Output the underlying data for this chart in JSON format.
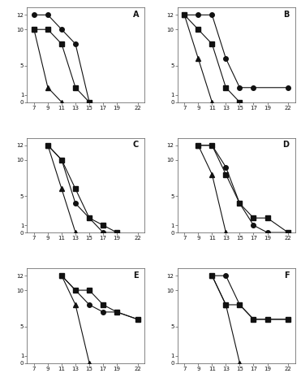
{
  "subplots": {
    "A": {
      "circle": {
        "x": [
          7,
          9,
          11,
          13,
          15
        ],
        "y": [
          12,
          12,
          10,
          8,
          0
        ]
      },
      "square": {
        "x": [
          7,
          9,
          11,
          13,
          15
        ],
        "y": [
          10,
          10,
          8,
          2,
          0
        ]
      },
      "triangle": {
        "x": [
          7,
          9,
          11
        ],
        "y": [
          10,
          2,
          0
        ]
      }
    },
    "B": {
      "circle": {
        "x": [
          7,
          9,
          11,
          13,
          15,
          17,
          22
        ],
        "y": [
          12,
          12,
          12,
          6,
          2,
          2,
          2
        ]
      },
      "square": {
        "x": [
          7,
          9,
          11,
          13,
          15
        ],
        "y": [
          12,
          10,
          8,
          2,
          0
        ]
      },
      "triangle": {
        "x": [
          7,
          9,
          11
        ],
        "y": [
          12,
          6,
          0
        ]
      }
    },
    "C": {
      "circle": {
        "x": [
          9,
          11,
          13,
          15,
          17,
          19
        ],
        "y": [
          12,
          10,
          4,
          2,
          0,
          0
        ]
      },
      "square": {
        "x": [
          9,
          11,
          13,
          15,
          17,
          19
        ],
        "y": [
          12,
          10,
          6,
          2,
          1,
          0
        ]
      },
      "triangle": {
        "x": [
          9,
          11,
          13
        ],
        "y": [
          12,
          6,
          0
        ]
      }
    },
    "D": {
      "circle": {
        "x": [
          9,
          11,
          13,
          15,
          17,
          19,
          22
        ],
        "y": [
          12,
          12,
          9,
          4,
          1,
          0,
          0
        ]
      },
      "square": {
        "x": [
          9,
          11,
          13,
          15,
          17,
          19,
          22
        ],
        "y": [
          12,
          12,
          8,
          4,
          2,
          2,
          0
        ]
      },
      "triangle": {
        "x": [
          9,
          11,
          13
        ],
        "y": [
          12,
          8,
          0
        ]
      }
    },
    "E": {
      "circle": {
        "x": [
          11,
          13,
          15,
          17,
          19,
          22
        ],
        "y": [
          12,
          10,
          8,
          7,
          7,
          6
        ]
      },
      "square": {
        "x": [
          11,
          13,
          15,
          17,
          19,
          22
        ],
        "y": [
          12,
          10,
          10,
          8,
          7,
          6
        ]
      },
      "triangle": {
        "x": [
          11,
          13,
          15
        ],
        "y": [
          12,
          8,
          0
        ]
      }
    },
    "F": {
      "circle": {
        "x": [
          11,
          13,
          15,
          17,
          19,
          22
        ],
        "y": [
          12,
          12,
          8,
          6,
          6,
          6
        ]
      },
      "square": {
        "x": [
          11,
          13,
          15,
          17,
          19,
          22
        ],
        "y": [
          12,
          8,
          8,
          6,
          6,
          6
        ]
      },
      "triangle": {
        "x": [
          11,
          13,
          15
        ],
        "y": [
          12,
          8,
          0
        ]
      }
    }
  },
  "xlim": [
    6,
    23
  ],
  "ylim": [
    0,
    13
  ],
  "xticks": [
    7,
    9,
    11,
    13,
    15,
    17,
    19,
    22
  ],
  "yticks": [
    0,
    1,
    5,
    10,
    12
  ],
  "bg_color": "#ffffff",
  "line_color": "#111111",
  "marker_size": 4,
  "linewidth": 0.8
}
